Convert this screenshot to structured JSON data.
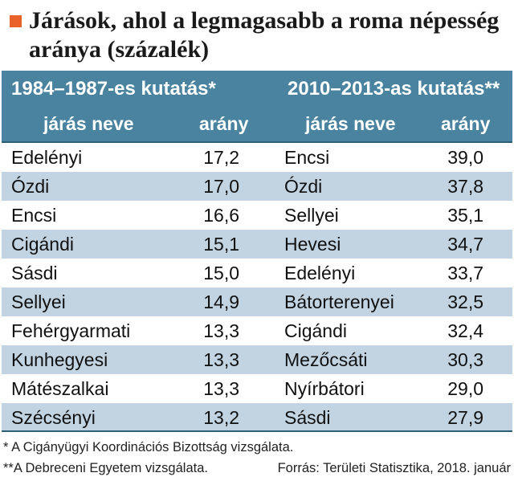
{
  "chart_data": {
    "type": "table",
    "title": "Járások, ahol a legmagasabb a roma népesség aránya (százalék)",
    "accent_color": "#e8622a",
    "header_color": "#4a83a0",
    "stripe_color": "#c2d4e2",
    "sections": [
      {
        "label": "1984–1987-es kutatás*",
        "columns": [
          "járás neve",
          "arány"
        ],
        "rows": [
          {
            "name": "Edelényi",
            "value": "17,2"
          },
          {
            "name": "Ózdi",
            "value": "17,0"
          },
          {
            "name": "Encsi",
            "value": "16,6"
          },
          {
            "name": "Cigándi",
            "value": "15,1"
          },
          {
            "name": "Sásdi",
            "value": "15,0"
          },
          {
            "name": "Sellyei",
            "value": "14,9"
          },
          {
            "name": "Fehérgyarmati",
            "value": "13,3"
          },
          {
            "name": "Kunhegyesi",
            "value": "13,3"
          },
          {
            "name": "Mátészalkai",
            "value": "13,3"
          },
          {
            "name": "Szécsényi",
            "value": "13,2"
          }
        ]
      },
      {
        "label": "2010–2013-as kutatás**",
        "columns": [
          "járás neve",
          "arány"
        ],
        "rows": [
          {
            "name": "Encsi",
            "value": "39,0"
          },
          {
            "name": "Ózdi",
            "value": "37,8"
          },
          {
            "name": "Sellyei",
            "value": "35,1"
          },
          {
            "name": "Hevesi",
            "value": "34,7"
          },
          {
            "name": "Edelényi",
            "value": "33,7"
          },
          {
            "name": "Bátorterenyei",
            "value": "32,5"
          },
          {
            "name": "Cigándi",
            "value": "32,4"
          },
          {
            "name": "Mezőcsáti",
            "value": "30,3"
          },
          {
            "name": "Nyírbátori",
            "value": "29,0"
          },
          {
            "name": "Sásdi",
            "value": "27,9"
          }
        ]
      }
    ],
    "footnotes": [
      "* A Cigányügyi Koordinációs Bizottság vizsgálata.",
      "**A Debreceni Egyetem vizsgálata."
    ],
    "source": "Forrás: Területi Statisztika, 2018. január"
  }
}
